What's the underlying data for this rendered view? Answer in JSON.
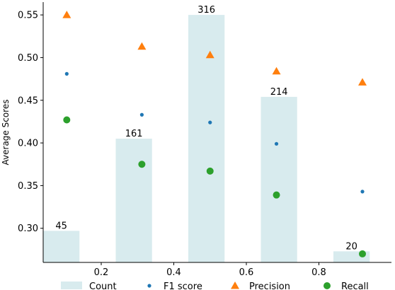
{
  "chart_data": {
    "type": "bar",
    "title": "",
    "xlabel": "",
    "ylabel": "Average Scores",
    "xlim": [
      0.04,
      1.0
    ],
    "ylim": [
      0.26,
      0.565
    ],
    "x_ticks": [
      0.2,
      0.4,
      0.6,
      0.8
    ],
    "x_tick_labels": [
      "0.2",
      "0.4",
      "0.6",
      "0.8"
    ],
    "y_ticks": [
      0.3,
      0.35,
      0.4,
      0.45,
      0.5,
      0.55
    ],
    "y_tick_labels": [
      "0.30",
      "0.35",
      "0.40",
      "0.45",
      "0.50",
      "0.55"
    ],
    "grid": false,
    "legend_position": "bottom",
    "bins": [
      {
        "x_start": 0.04,
        "x_end": 0.14,
        "count": 45,
        "count_label": "45",
        "bar_top": 0.297
      },
      {
        "x_start": 0.24,
        "x_end": 0.34,
        "count": 161,
        "count_label": "161",
        "bar_top": 0.405
      },
      {
        "x_start": 0.44,
        "x_end": 0.54,
        "count": 316,
        "count_label": "316",
        "bar_top": 0.55
      },
      {
        "x_start": 0.64,
        "x_end": 0.74,
        "count": 214,
        "count_label": "214",
        "bar_top": 0.454
      },
      {
        "x_start": 0.84,
        "x_end": 0.94,
        "count": 20,
        "count_label": "20",
        "bar_top": 0.273
      }
    ],
    "series": [
      {
        "name": "F1 score",
        "marker": "dot",
        "color": "#1f77b4",
        "x": [
          0.105,
          0.312,
          0.5,
          0.683,
          0.92
        ],
        "y": [
          0.481,
          0.433,
          0.424,
          0.399,
          0.343
        ]
      },
      {
        "name": "Precision",
        "marker": "triangle",
        "color": "#ff7f0e",
        "x": [
          0.105,
          0.312,
          0.5,
          0.683,
          0.92
        ],
        "y": [
          0.55,
          0.513,
          0.503,
          0.484,
          0.471
        ]
      },
      {
        "name": "Recall",
        "marker": "circle",
        "color": "#2ca02c",
        "x": [
          0.105,
          0.312,
          0.5,
          0.683,
          0.92
        ],
        "y": [
          0.427,
          0.375,
          0.367,
          0.339,
          0.27
        ]
      }
    ],
    "count_series": {
      "name": "Count",
      "color": "#d8ebee"
    },
    "legend": [
      "Count",
      "F1 score",
      "Precision",
      "Recall"
    ]
  }
}
